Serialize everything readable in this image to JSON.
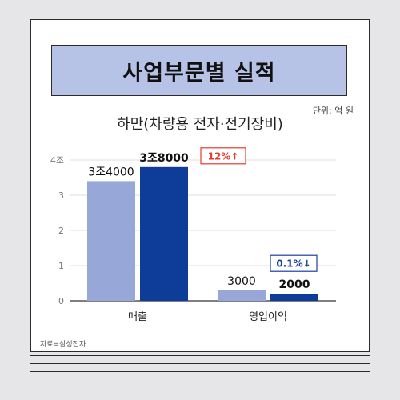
{
  "header": {
    "title": "사업부문별 실적"
  },
  "unit_note": "단위: 억 원",
  "source": "자료=삼성전자",
  "chart_data": {
    "type": "bar",
    "title": "하만(차량용 전자·전기장비)",
    "categories": [
      "매출",
      "영업이익"
    ],
    "series": [
      {
        "values": [
          3.4,
          0.3
        ],
        "color": "#97a8d8",
        "labels": [
          "3조4000",
          "3000"
        ]
      },
      {
        "values": [
          3.8,
          0.2
        ],
        "color": "#0d3d99",
        "labels": [
          "3조8000",
          "2000"
        ]
      }
    ],
    "y_ticks": [
      "0",
      "1",
      "2",
      "3",
      "4조"
    ],
    "ylim": [
      0,
      4
    ],
    "grid": true,
    "annotations": [
      {
        "text": "12%",
        "arrow": "↑",
        "color": "#e53b2c"
      },
      {
        "text": "0.1%",
        "arrow": "↓",
        "color": "#1a3f9e"
      }
    ]
  }
}
